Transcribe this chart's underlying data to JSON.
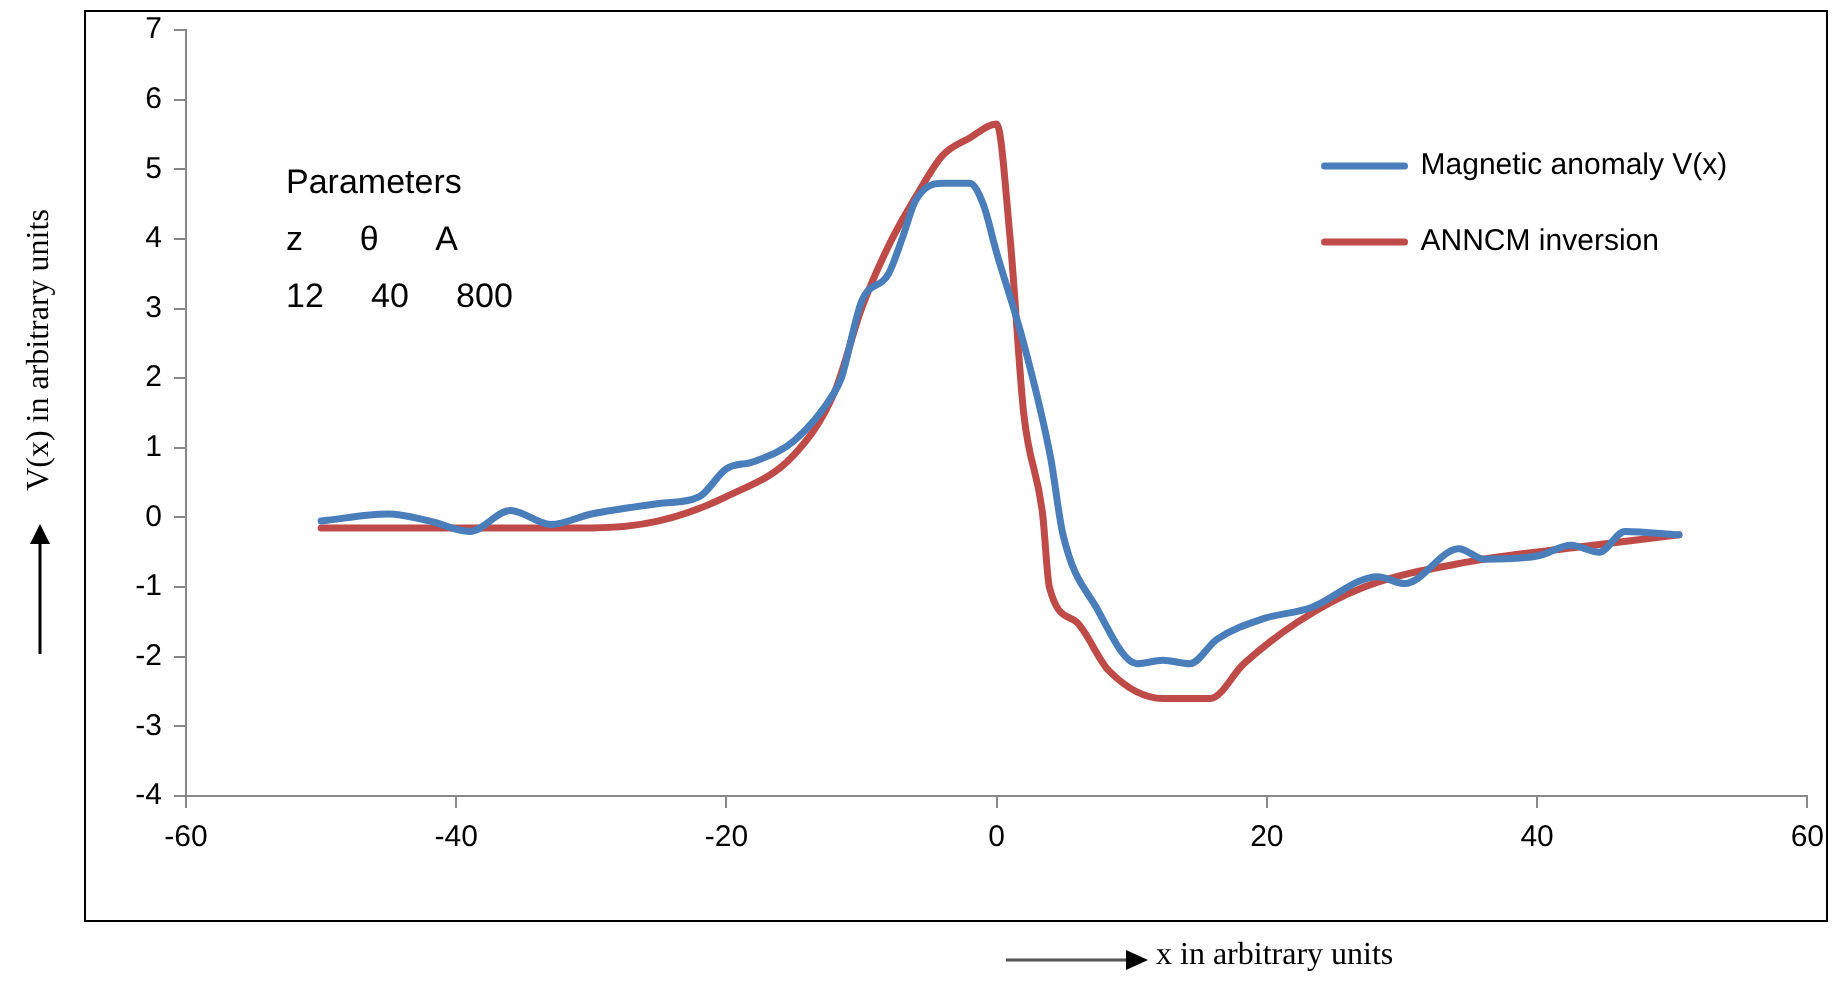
{
  "chart_data": {
    "type": "line",
    "xlabel": "x in arbitrary units",
    "ylabel": "V(x) in arbitrary units",
    "xlim": [
      -60,
      60
    ],
    "xticks": [
      -60,
      -40,
      -20,
      0,
      20,
      40,
      60
    ],
    "ylim": [
      -4,
      7
    ],
    "yticks": [
      -4,
      -3,
      -2,
      -1,
      0,
      1,
      2,
      3,
      4,
      5,
      6,
      7
    ],
    "grid": false,
    "legend": "top right",
    "marker": "none",
    "line_style": "solid",
    "annotations": [
      "Parameters",
      "z      θ      A",
      "12     40     800"
    ],
    "series": [
      {
        "name": "Magnetic anomaly V(x)",
        "color": "#4a7ebb",
        "x": [
          -50,
          -45,
          -42,
          -39,
          -36,
          -33,
          -30,
          -25,
          -22,
          -20,
          -18,
          -15,
          -12,
          -11.5,
          -10,
          -8,
          -7,
          -6,
          -4,
          -2,
          -1,
          0,
          2,
          4,
          4.9,
          7.4,
          10.4,
          12.3,
          14.3,
          16.3,
          19.8,
          23.2,
          28.2,
          30.2,
          34.2,
          36.1,
          40.1,
          42.5,
          44.6,
          46.5,
          50.5
        ],
        "values": [
          -0.05,
          0.05,
          -0.05,
          -0.2,
          0.1,
          -0.1,
          0.05,
          0.2,
          0.3,
          0.7,
          0.8,
          1.1,
          1.8,
          2.0,
          3.1,
          3.5,
          4.0,
          4.55,
          4.8,
          4.8,
          4.5,
          3.8,
          2.5,
          0.85,
          -0.24,
          -1.3,
          -2.1,
          -2.05,
          -2.1,
          -1.75,
          -1.45,
          -1.3,
          -0.85,
          -0.95,
          -0.45,
          -0.6,
          -0.55,
          -0.4,
          -0.5,
          -0.2,
          -0.25
        ]
      },
      {
        "name": "ANNCM inversion",
        "color": "#be4b48",
        "x": [
          -50,
          -40,
          -30,
          -25,
          -20,
          -15,
          -12,
          -10,
          -8,
          -6,
          -4,
          -2,
          0,
          1,
          2,
          3.4,
          3.9,
          5.9,
          8.3,
          12.3,
          15.8,
          18.3,
          22.3,
          27.2,
          35.1,
          42,
          50.5
        ],
        "values": [
          -0.15,
          -0.15,
          -0.15,
          -0.05,
          0.3,
          0.9,
          1.8,
          3.0,
          3.9,
          4.6,
          5.2,
          5.45,
          5.65,
          4.0,
          1.5,
          0.05,
          -1.0,
          -1.5,
          -2.2,
          -2.6,
          -2.6,
          -2.1,
          -1.5,
          -1.0,
          -0.63,
          -0.45,
          -0.25
        ]
      }
    ]
  }
}
